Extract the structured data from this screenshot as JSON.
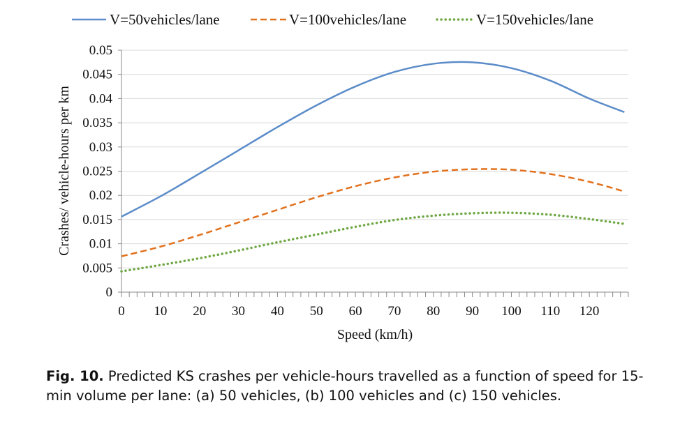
{
  "chart_data": {
    "type": "line",
    "xlabel": "Speed (km/h)",
    "ylabel": "Crashes/ vehicle-hours per km",
    "xlim": [
      0,
      130
    ],
    "ylim": [
      0,
      0.05
    ],
    "x_ticks": [
      "0",
      "10",
      "20",
      "30",
      "40",
      "50",
      "60",
      "70",
      "80",
      "90",
      "100",
      "110",
      "120"
    ],
    "y_ticks": [
      "0",
      "0.005",
      "0.01",
      "0.015",
      "0.02",
      "0.025",
      "0.03",
      "0.035",
      "0.04",
      "0.045",
      "0.05"
    ],
    "grid": "horizontal",
    "legend_position": "top",
    "x": [
      0,
      10,
      20,
      30,
      40,
      50,
      60,
      70,
      80,
      90,
      100,
      110,
      120,
      129
    ],
    "series": [
      {
        "name": "V=50vehicles/lane",
        "color": "#5b8cc9",
        "style": "solid",
        "values": [
          0.0156,
          0.0198,
          0.0245,
          0.0293,
          0.0341,
          0.0386,
          0.0425,
          0.0455,
          0.0472,
          0.0475,
          0.0463,
          0.0437,
          0.04,
          0.0372
        ]
      },
      {
        "name": "V=100vehicles/lane",
        "color": "#e2711d",
        "style": "dashed",
        "values": [
          0.0074,
          0.0094,
          0.0118,
          0.0144,
          0.017,
          0.0196,
          0.0219,
          0.0237,
          0.0249,
          0.0254,
          0.0253,
          0.0244,
          0.0228,
          0.0208
        ]
      },
      {
        "name": "V=150vehicles/lane",
        "color": "#70a845",
        "style": "dotted",
        "values": [
          0.0043,
          0.0056,
          0.007,
          0.0086,
          0.0103,
          0.0119,
          0.0135,
          0.0149,
          0.0158,
          0.0163,
          0.0164,
          0.016,
          0.0151,
          0.0141
        ]
      }
    ]
  },
  "caption": {
    "label": "Fig. 10.",
    "text": " Predicted KS crashes per vehicle-hours travelled as a function of speed for 15-min volume per lane: (a) 50 vehicles, (b) 100 vehicles and (c) 150 vehicles."
  }
}
